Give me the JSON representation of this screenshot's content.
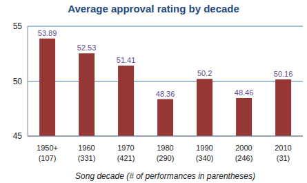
{
  "chart_data": {
    "type": "bar",
    "title": "Average approval rating by decade",
    "x_label": "Song decade (# of performances in parentheses)",
    "categories": [
      "1950+\n(107)",
      "1960\n(331)",
      "1970\n(421)",
      "1980\n(290)",
      "1990\n(340)",
      "2000\n(246)",
      "2010\n(31)"
    ],
    "values": [
      53.89,
      52.53,
      51.41,
      48.36,
      50.2,
      48.46,
      50.16
    ],
    "color": "#953735",
    "ylim": [
      45,
      55
    ],
    "yticks": [
      45,
      50,
      55
    ],
    "grid": true,
    "data_labels": true
  }
}
